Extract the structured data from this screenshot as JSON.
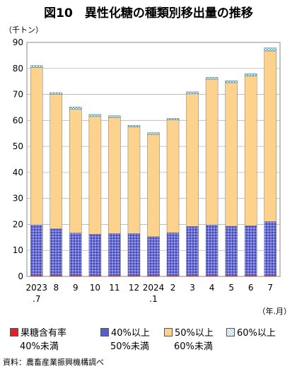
{
  "title": "図10　異性化糖の種類別移出量の推移",
  "chart_data": {
    "type": "bar",
    "stacked": true,
    "title": "図10　異性化糖の種類別移出量の推移",
    "ylabel": "（千トン）",
    "xlabel": "（年.月）",
    "ylim": [
      0,
      90
    ],
    "yticks": [
      0,
      10,
      20,
      30,
      40,
      50,
      60,
      70,
      80,
      90
    ],
    "grid": "horizontal",
    "legend": "bottom",
    "categories": [
      "2023\n.7",
      "8",
      "9",
      "10",
      "11",
      "12",
      "2024\n.1",
      "2",
      "3",
      "4",
      "5",
      "6",
      "7"
    ],
    "category_lines": [
      [
        "2023",
        ".7"
      ],
      [
        "8"
      ],
      [
        "9"
      ],
      [
        "10"
      ],
      [
        "11"
      ],
      [
        "12"
      ],
      [
        "2024",
        ".1"
      ],
      [
        "2"
      ],
      [
        "3"
      ],
      [
        "4"
      ],
      [
        "5"
      ],
      [
        "6"
      ],
      [
        "7"
      ]
    ],
    "series": [
      {
        "name": "果糖含有率40%未満",
        "legend_lines": [
          "果糖含有率",
          "40%未満"
        ],
        "color": "#e0202a",
        "pattern": "solid",
        "values": [
          0.3,
          0.3,
          0.3,
          0.3,
          0.3,
          0.3,
          0.3,
          0.3,
          0.3,
          0.3,
          0.3,
          0.3,
          0.3
        ]
      },
      {
        "name": "40%以上50%未満",
        "legend_lines": [
          "40%以上",
          "50%未満"
        ],
        "color": "#4b4fc4",
        "pattern": "dots",
        "values": [
          19.5,
          18.0,
          16.4,
          15.9,
          16.2,
          16.2,
          15.0,
          16.5,
          18.9,
          19.5,
          19.0,
          19.2,
          20.8
        ]
      },
      {
        "name": "50%以上60%未満",
        "legend_lines": [
          "50%以上",
          "60%未満"
        ],
        "color": "#fcd28c",
        "pattern": "solid",
        "values": [
          60.5,
          51.7,
          47.6,
          45.3,
          44.6,
          41.0,
          39.3,
          43.4,
          51.0,
          56.0,
          55.2,
          57.6,
          65.6
        ]
      },
      {
        "name": "60%以上",
        "legend_lines": [
          "60%以上",
          ""
        ],
        "color": "#7fd0e6",
        "pattern": "hatch",
        "values": [
          0.8,
          0.7,
          0.9,
          0.8,
          0.7,
          0.6,
          0.7,
          0.6,
          0.8,
          0.8,
          0.8,
          0.9,
          1.2
        ]
      }
    ]
  },
  "source": "資料：農畜産業振興機構調べ"
}
